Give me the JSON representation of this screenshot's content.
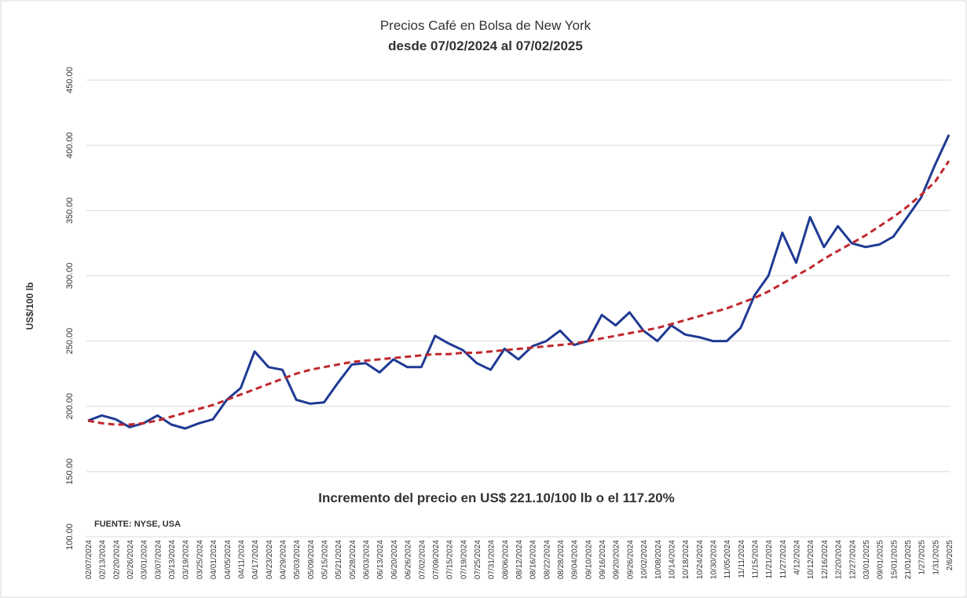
{
  "chart_data": {
    "type": "line",
    "title": "Precios Café en Bolsa de New York",
    "subtitle": "desde 07/02/2024 al 07/02/2025",
    "y_label": "US$/100 lb",
    "annotation": "Incremento del precio en US$ 221.10/100 lb o el 117.20%",
    "source": "FUENTE: NYSE, USA",
    "categories": [
      "02/07/2024",
      "02/13/2024",
      "02/20/2024",
      "02/26/2024",
      "03/01/2024",
      "03/07/2024",
      "03/13/2024",
      "03/19/2024",
      "03/25/2024",
      "04/01/2024",
      "04/05/2024",
      "04/11/2024",
      "04/17/2024",
      "04/23/2024",
      "04/29/2024",
      "05/03/2024",
      "05/09/2024",
      "05/15/2024",
      "05/21/2024",
      "05/28/2024",
      "06/03/2024",
      "06/13/2024",
      "06/20/2024",
      "06/26/2024",
      "07/02/2024",
      "07/09/2024",
      "07/15/2024",
      "07/19/2024",
      "07/25/2024",
      "07/31/2024",
      "08/06/2024",
      "08/12/2024",
      "08/16/2024",
      "08/22/2024",
      "08/28/2024",
      "09/04/2024",
      "09/10/2024",
      "09/16/2024",
      "09/20/2024",
      "09/26/2024",
      "10/02/2024",
      "10/08/2024",
      "10/14/2024",
      "10/18/2024",
      "10/24/2024",
      "10/30/2024",
      "11/05/2024",
      "11/11/2024",
      "11/15/2024",
      "11/21/2024",
      "11/27/2024",
      "4/12/2024",
      "10/12/2024",
      "12/16/2024",
      "12/20/2024",
      "12/27/2024",
      "03/01/2025",
      "09/01/2025",
      "15/01/2025",
      "21/01/2025",
      "1/27/2025",
      "1/31/2025",
      "2/6/2025"
    ],
    "series": [
      {
        "color": "#1f3a93",
        "style": "solid",
        "values": [
          189,
          193,
          190,
          184,
          187,
          193,
          186,
          183,
          187,
          190,
          205,
          214,
          242,
          230,
          228,
          205,
          202,
          203,
          218,
          232,
          233,
          226,
          236,
          230,
          230,
          254,
          248,
          243,
          233,
          228,
          244,
          236,
          246,
          250,
          258,
          247,
          250,
          270,
          262,
          272,
          258,
          250,
          262,
          255,
          253,
          250,
          250,
          260,
          285,
          300,
          333,
          310,
          345,
          322,
          338,
          325,
          322,
          324,
          330,
          345,
          360,
          385,
          408
        ]
      },
      {
        "color": "#c0282d",
        "style": "dashed",
        "values": [
          189,
          187,
          186,
          186,
          187,
          189,
          192,
          195,
          198,
          201,
          205,
          209,
          213,
          217,
          221,
          225,
          228,
          230,
          232,
          234,
          235,
          236,
          237,
          238,
          239,
          240,
          240,
          241,
          241,
          242,
          243,
          244,
          245,
          246,
          247,
          248,
          250,
          252,
          254,
          256,
          258,
          260,
          263,
          266,
          269,
          272,
          275,
          279,
          283,
          288,
          294,
          300,
          306,
          313,
          319,
          325,
          331,
          338,
          345,
          353,
          362,
          372,
          388
        ]
      }
    ],
    "ylim": [
      100,
      450
    ],
    "yticks": [
      {
        "value": 100,
        "label": "100.00"
      },
      {
        "value": 150,
        "label": "150.00"
      },
      {
        "value": 200,
        "label": "200.00"
      },
      {
        "value": 250,
        "label": "250.00"
      },
      {
        "value": 300,
        "label": "300.00"
      },
      {
        "value": 350,
        "label": "350.00"
      },
      {
        "value": 400,
        "label": "400.00"
      },
      {
        "value": 450,
        "label": "450.00"
      }
    ],
    "grid": true
  }
}
